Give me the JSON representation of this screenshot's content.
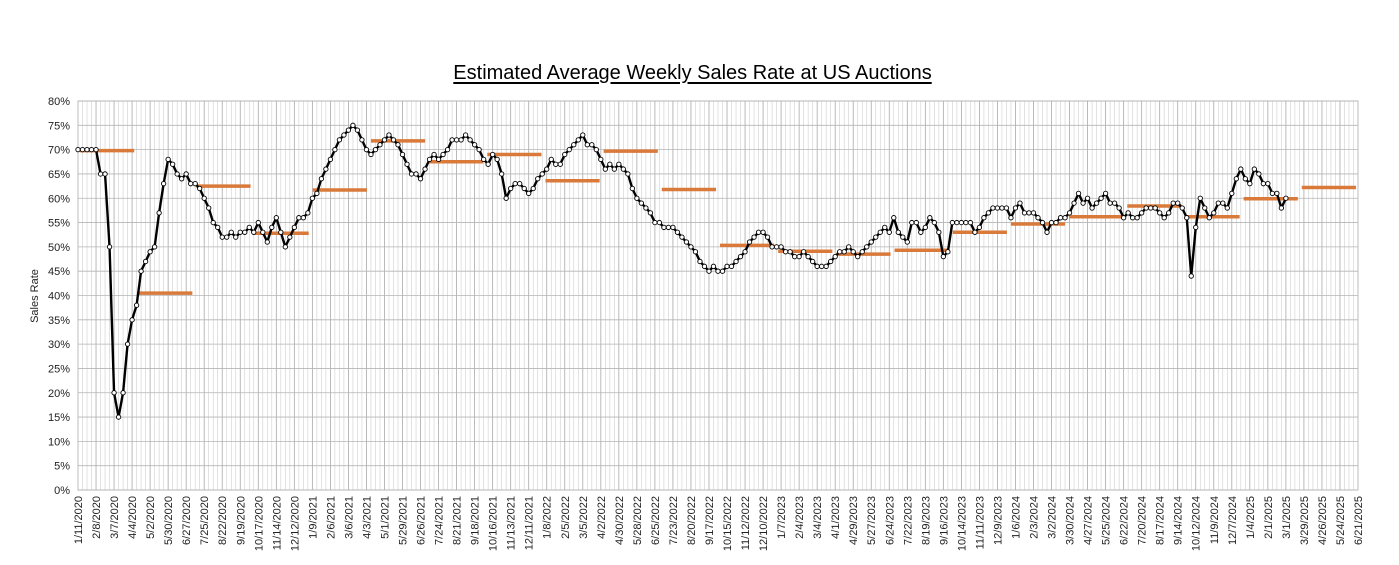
{
  "chart_data": {
    "type": "line",
    "title": "Estimated Average Weekly Sales Rate at US Auctions",
    "xlabel": "",
    "ylabel": "Sales Rate",
    "ylim": [
      0,
      80
    ],
    "y_ticks": [
      "0%",
      "5%",
      "10%",
      "15%",
      "20%",
      "25%",
      "30%",
      "35%",
      "40%",
      "45%",
      "50%",
      "55%",
      "60%",
      "65%",
      "70%",
      "75%",
      "80%"
    ],
    "grid": true,
    "x_tick_labels": [
      "1/11/2020",
      "2/8/2020",
      "3/7/2020",
      "4/4/2020",
      "5/2/2020",
      "5/30/2020",
      "6/27/2020",
      "7/25/2020",
      "8/22/2020",
      "9/19/2020",
      "10/17/2020",
      "11/14/2020",
      "12/12/2020",
      "1/9/2021",
      "2/6/2021",
      "3/6/2021",
      "4/3/2021",
      "5/1/2021",
      "5/29/2021",
      "6/26/2021",
      "7/24/2021",
      "8/21/2021",
      "9/18/2021",
      "10/16/2021",
      "11/13/2021",
      "12/11/2021",
      "1/8/2022",
      "2/5/2022",
      "3/5/2022",
      "4/2/2022",
      "4/30/2022",
      "5/28/2022",
      "6/25/2022",
      "7/23/2022",
      "8/20/2022",
      "9/17/2022",
      "10/15/2022",
      "11/12/2022",
      "12/10/2022",
      "1/7/2023",
      "2/4/2023",
      "3/4/2023",
      "4/1/2023",
      "4/29/2023",
      "5/27/2023",
      "6/24/2023",
      "7/22/2023",
      "8/19/2023",
      "9/16/2023",
      "10/14/2023",
      "11/11/2023",
      "12/9/2023",
      "1/6/2024",
      "2/3/2024",
      "3/2/2024",
      "3/30/2024",
      "4/27/2024",
      "5/25/2024",
      "6/22/2024",
      "7/20/2024",
      "8/17/2024",
      "9/14/2024",
      "10/12/2024",
      "11/9/2024",
      "12/7/2024",
      "1/4/2025",
      "2/1/2025",
      "3/1/2025",
      "3/29/2025",
      "4/26/2025",
      "5/24/2025",
      "6/21/2025"
    ],
    "series": [
      {
        "name": "",
        "color": "#000000",
        "marker": "circle-open",
        "values": [
          70,
          70,
          70,
          70,
          70,
          65,
          65,
          50,
          20,
          15,
          20,
          30,
          35,
          38,
          45,
          47,
          49,
          50,
          57,
          63,
          68,
          67,
          65,
          64,
          65,
          63,
          63,
          62,
          60,
          58,
          55,
          54,
          52,
          52,
          53,
          52,
          53,
          53,
          54,
          53,
          55,
          53,
          51,
          54,
          56,
          53,
          50,
          52,
          54,
          56,
          56,
          57,
          60,
          61,
          64,
          66,
          68,
          70,
          72,
          73,
          74,
          75,
          74,
          72,
          70,
          69,
          70,
          71,
          72,
          73,
          72,
          71,
          69,
          67,
          65,
          65,
          64,
          66,
          68,
          69,
          68,
          69,
          70,
          72,
          72,
          72,
          73,
          72,
          71,
          70,
          68,
          67,
          69,
          68,
          65,
          60,
          62,
          63,
          63,
          62,
          61,
          62,
          64,
          65,
          66,
          68,
          67,
          67,
          69,
          70,
          71,
          72,
          73,
          71,
          71,
          70,
          68,
          66,
          67,
          66,
          67,
          66,
          65,
          62,
          60,
          59,
          58,
          57,
          55,
          55,
          54,
          54,
          54,
          53,
          52,
          51,
          50,
          49,
          47,
          46,
          45,
          46,
          45,
          45,
          46,
          46,
          47,
          48,
          49,
          51,
          52,
          53,
          53,
          52,
          50,
          50,
          50,
          49,
          49,
          48,
          48,
          49,
          48,
          47,
          46,
          46,
          46,
          47,
          48,
          49,
          49,
          50,
          49,
          48,
          49,
          50,
          51,
          52,
          53,
          54,
          53,
          56,
          53,
          52,
          51,
          55,
          55,
          53,
          54,
          56,
          55,
          53,
          48,
          49,
          55,
          55,
          55,
          55,
          55,
          53,
          54,
          56,
          57,
          58,
          58,
          58,
          58,
          56,
          58,
          59,
          57,
          57,
          57,
          56,
          55,
          53,
          55,
          55,
          56,
          56,
          57,
          59,
          61,
          59,
          60,
          58,
          59,
          60,
          61,
          59,
          59,
          58,
          56,
          57,
          56,
          56,
          57,
          58,
          58,
          58,
          57,
          56,
          57,
          59,
          59,
          58,
          56,
          44,
          54,
          60,
          58,
          56,
          57,
          59,
          59,
          58,
          61,
          64,
          66,
          64,
          63,
          66,
          65,
          63,
          63,
          61,
          61,
          58,
          60
        ]
      }
    ],
    "annual_averages": {
      "name": "",
      "color": "#d97a3a",
      "values": [
        69.8,
        40.5,
        62.5,
        52.8,
        61.7,
        71.8,
        67.5,
        69.0,
        63.6,
        69.7,
        61.8,
        50.3,
        49.1,
        48.5,
        49.3,
        53.0,
        54.7,
        56.2,
        58.4,
        56.2,
        59.9,
        62.2
      ]
    }
  }
}
